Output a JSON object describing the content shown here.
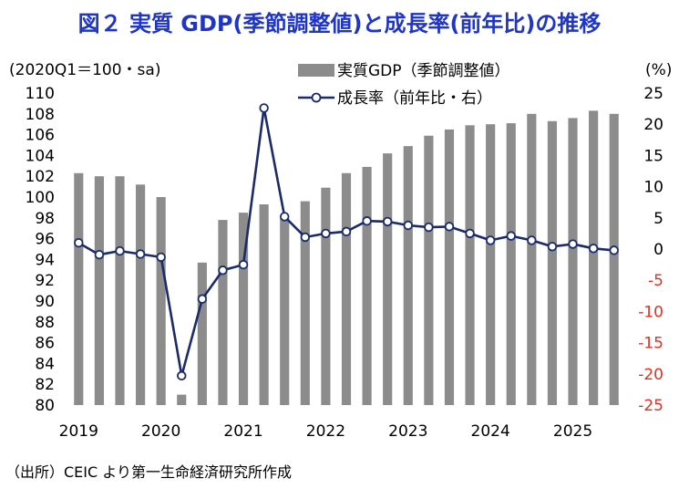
{
  "title": "図２ 実質 GDP(季節調整値)と成長率(前年比)の推移",
  "source": "（出所）CEIC より第一生命経済研究所作成",
  "colors": {
    "title": "#1f35c6",
    "bar": "#8c8c8c",
    "line": "#1b2a6b",
    "negative_tick": "#e03020"
  },
  "chart_data": {
    "type": "bar+line",
    "left_axis_unit": "(2020Q1＝100・sa)",
    "right_axis_unit": "(%)",
    "left_axis": {
      "min": 80,
      "max": 110,
      "step": 2,
      "ticks": [
        "80",
        "82",
        "84",
        "86",
        "88",
        "90",
        "92",
        "94",
        "96",
        "98",
        "100",
        "102",
        "104",
        "106",
        "108",
        "110"
      ]
    },
    "right_axis": {
      "min": -25,
      "max": 25,
      "step": 5,
      "ticks": [
        "-25",
        "-20",
        "-15",
        "-10",
        "-5",
        "0",
        "5",
        "10",
        "15",
        "20",
        "25"
      ]
    },
    "x_ticks": [
      "2019",
      "2020",
      "2021",
      "2022",
      "2023",
      "2024",
      "2025"
    ],
    "quarters": [
      "2019Q1",
      "2019Q2",
      "2019Q3",
      "2019Q4",
      "2020Q1",
      "2020Q2",
      "2020Q3",
      "2020Q4",
      "2021Q1",
      "2021Q2",
      "2021Q3",
      "2021Q4",
      "2022Q1",
      "2022Q2",
      "2022Q3",
      "2022Q4",
      "2023Q1",
      "2023Q2",
      "2023Q3",
      "2023Q4",
      "2024Q1",
      "2024Q2",
      "2024Q3",
      "2024Q4",
      "2025Q1",
      "2025Q2",
      "2025Q3"
    ],
    "series": [
      {
        "name": "実質GDP（季節調整値）",
        "type": "bar",
        "axis": "left",
        "values": [
          102.3,
          102.0,
          102.0,
          101.2,
          100.0,
          81.0,
          93.7,
          97.8,
          98.5,
          99.3,
          98.0,
          99.6,
          100.9,
          102.3,
          102.9,
          104.2,
          104.9,
          105.9,
          106.5,
          106.9,
          107.0,
          107.1,
          108.0,
          107.3,
          107.6,
          108.3,
          108.0
        ]
      },
      {
        "name": "成長率（前年比・右）",
        "type": "line",
        "axis": "right",
        "values": [
          1.0,
          -0.9,
          -0.3,
          -0.8,
          -1.3,
          -20.3,
          -8.0,
          -3.4,
          -2.5,
          22.6,
          5.2,
          1.9,
          2.5,
          2.8,
          4.5,
          4.4,
          3.8,
          3.5,
          3.6,
          2.5,
          1.4,
          2.1,
          1.4,
          0.4,
          0.8,
          0.1,
          -0.2
        ]
      }
    ]
  }
}
